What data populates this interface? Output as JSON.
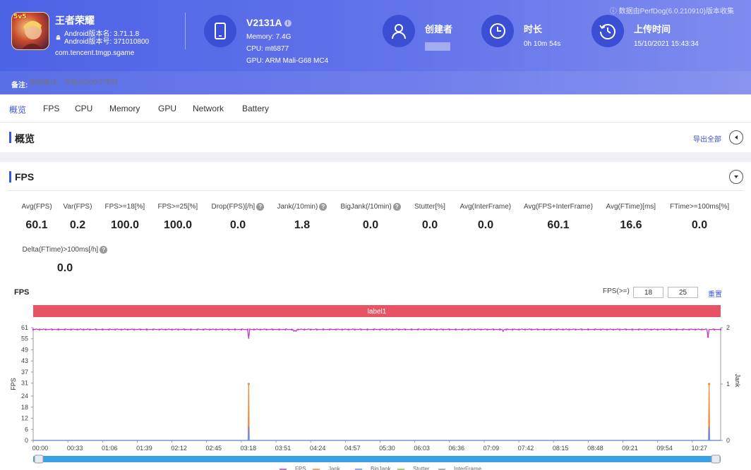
{
  "header": {
    "source_note": "数据由PerfDog(6.0.210910)版本收集",
    "app": {
      "name": "王者荣耀",
      "version_name_label": "Android版本名: 3.71.1.8",
      "version_code_label": "Android版本号: 371010800",
      "package": "com.tencent.tmgp.sgame",
      "icon_badge": "5v5"
    },
    "device": {
      "name": "V2131A",
      "memory": "Memory: 7.4G",
      "cpu": "CPU: mt6877",
      "gpu": "GPU: ARM Mali-G68 MC4"
    },
    "creator": {
      "label": "创建者"
    },
    "duration": {
      "label": "时长",
      "value": "0h 10m 54s"
    },
    "upload": {
      "label": "上传时间",
      "value": "15/10/2021 15:43:34"
    },
    "remark": {
      "label": "备注:",
      "placeholder": "添加备注，不超过200个字符"
    }
  },
  "tabs": [
    "概览",
    "FPS",
    "CPU",
    "Memory",
    "GPU",
    "Network",
    "Battery"
  ],
  "overview": {
    "title": "概览",
    "export_label": "导出全部"
  },
  "fps_section": {
    "title": "FPS",
    "stats": [
      {
        "label": "Avg(FPS)",
        "value": "60.1",
        "help": false
      },
      {
        "label": "Var(FPS)",
        "value": "0.2",
        "help": false
      },
      {
        "label": "FPS>=18[%]",
        "value": "100.0",
        "help": false
      },
      {
        "label": "FPS>=25[%]",
        "value": "100.0",
        "help": false
      },
      {
        "label": "Drop(FPS)[/h]",
        "value": "0.0",
        "help": true
      },
      {
        "label": "Jank(/10min)",
        "value": "1.8",
        "help": true
      },
      {
        "label": "BigJank(/10min)",
        "value": "0.0",
        "help": true
      },
      {
        "label": "Stutter[%]",
        "value": "0.0",
        "help": false
      },
      {
        "label": "Avg(InterFrame)",
        "value": "0.0",
        "help": false
      },
      {
        "label": "Avg(FPS+InterFrame)",
        "value": "60.1",
        "help": false
      },
      {
        "label": "Avg(FTime)[ms]",
        "value": "16.6",
        "help": false
      },
      {
        "label": "FTime>=100ms[%]",
        "value": "0.0",
        "help": false
      },
      {
        "label": "Delta(FTime)>100ms[/h]",
        "value": "0.0",
        "help": true
      }
    ],
    "chart_title": "FPS",
    "threshold_label": "FPS(>=)",
    "threshold_1": "18",
    "threshold_2": "25",
    "reset_label": "重置"
  },
  "chart_data": {
    "type": "line",
    "label_band": "label1",
    "xlabel": "",
    "ylabel": "FPS",
    "y2label": "Jank",
    "ylim": [
      0,
      61
    ],
    "y2lim": [
      0,
      2
    ],
    "y_ticks": [
      0,
      6,
      12,
      18,
      24,
      31,
      37,
      43,
      49,
      55,
      61
    ],
    "y2_ticks": [
      0,
      1,
      2
    ],
    "x_ticks": [
      "00:00",
      "00:33",
      "01:06",
      "01:39",
      "02:12",
      "02:45",
      "03:18",
      "03:51",
      "04:24",
      "04:57",
      "05:30",
      "06:03",
      "06:36",
      "07:09",
      "07:42",
      "08:15",
      "08:48",
      "09:21",
      "09:54",
      "10:27"
    ],
    "duration_seconds": 654,
    "series": [
      {
        "name": "FPS",
        "color": "#c040c0",
        "baseline": 60,
        "dips": [
          [
            205,
            55
          ],
          [
            248,
            59
          ],
          [
            249,
            59.5
          ],
          [
            250,
            59
          ],
          [
            447,
            59
          ],
          [
            642,
            56
          ],
          [
            650,
            60
          ]
        ]
      },
      {
        "name": "Jank",
        "color": "#f08a3a",
        "spikes": [
          [
            205,
            1
          ],
          [
            643,
            1
          ]
        ]
      },
      {
        "name": "BigJank",
        "color": "#5b8ff9",
        "spikes": [
          [
            205,
            0.25
          ],
          [
            643,
            0.25
          ]
        ]
      }
    ],
    "legend": [
      "FPS",
      "Jank",
      "BigJank",
      "Stutter",
      "InterFrame"
    ],
    "grid": false
  }
}
